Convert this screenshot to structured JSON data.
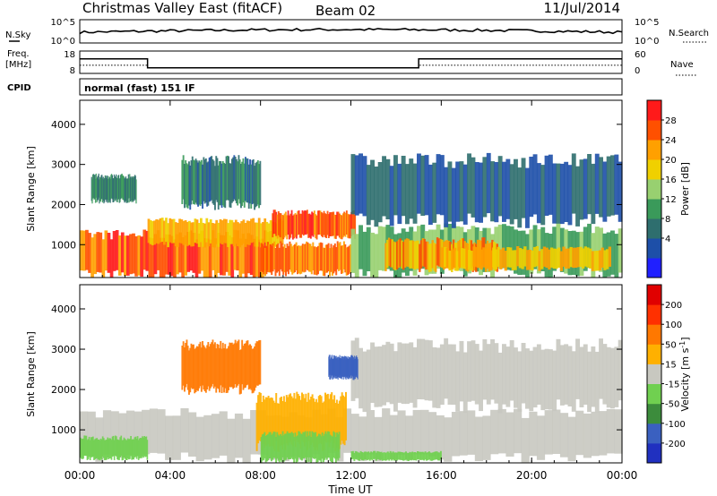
{
  "header": {
    "title": "Christmas Valley East (fitACF)",
    "beam": "Beam 02",
    "date": "11/Jul/2014"
  },
  "mode_label": "normal (fast) 151 IF",
  "side_labels": {
    "nsky": "N.Sky",
    "nsearch": "N.Search",
    "freq": "Freq.",
    "freq_unit": "[MHz]",
    "nave": "Nave",
    "cpid": "CPID"
  },
  "noise_panel": {
    "left_ticks": [
      "10^5",
      "10^0"
    ],
    "right_ticks": [
      "10^5",
      "10^0"
    ]
  },
  "freq_panel": {
    "left_ticks": [
      "18",
      "8"
    ],
    "right_ticks": [
      "60",
      "0"
    ],
    "frequency_mhz": [
      {
        "start_hour": 0,
        "end_hour": 3,
        "value": 14.5
      },
      {
        "start_hour": 3,
        "end_hour": 15,
        "value": 10.5
      },
      {
        "start_hour": 15,
        "end_hour": 24,
        "value": 14.5
      }
    ],
    "nave": [
      {
        "start_hour": 0,
        "end_hour": 3,
        "value": 22
      },
      {
        "start_hour": 3,
        "end_hour": 15,
        "value": 15
      },
      {
        "start_hour": 15,
        "end_hour": 24,
        "value": 22
      }
    ]
  },
  "chart_data": [
    {
      "type": "heatmap",
      "panel": "power",
      "ylabel": "Slant Range [km]",
      "xlim_hours": [
        0,
        24
      ],
      "ylim_km": [
        180,
        4600
      ],
      "yticks": [
        "1000",
        "2000",
        "3000",
        "4000"
      ],
      "colorbar": {
        "label": "Power [dB]",
        "ticks": [
          "28",
          "24",
          "20",
          "16",
          "12",
          "8",
          "4"
        ],
        "colors": [
          "#2020ff",
          "#1d4fa8",
          "#2e6e6e",
          "#3a9a5a",
          "#98d070",
          "#f0d000",
          "#ffa000",
          "#ff5000",
          "#ff1a1a"
        ]
      },
      "echo_regions": [
        {
          "t0": 0.0,
          "t1": 8.5,
          "r0": 250,
          "r1": 1250,
          "value_db": 28
        },
        {
          "t0": 3.0,
          "t1": 9.0,
          "r0": 1000,
          "r1": 1600,
          "value_db": 22
        },
        {
          "t0": 8.5,
          "t1": 12.2,
          "r0": 1200,
          "r1": 1800,
          "value_db": 28
        },
        {
          "t0": 8.0,
          "t1": 12.0,
          "r0": 300,
          "r1": 1000,
          "value_db": 26
        },
        {
          "t0": 12.0,
          "t1": 24.0,
          "r0": 300,
          "r1": 1400,
          "value_db": 14
        },
        {
          "t0": 13.5,
          "t1": 18.5,
          "r0": 400,
          "r1": 1100,
          "value_db": 24
        },
        {
          "t0": 16.0,
          "t1": 23.5,
          "r0": 400,
          "r1": 900,
          "value_db": 22
        },
        {
          "t0": 4.5,
          "t1": 8.0,
          "r0": 2000,
          "r1": 3100,
          "value_db": 8
        },
        {
          "t0": 12.0,
          "t1": 24.0,
          "r0": 1600,
          "r1": 3100,
          "value_db": 6
        },
        {
          "t0": 0.5,
          "t1": 2.5,
          "r0": 2100,
          "r1": 2700,
          "value_db": 10
        }
      ]
    },
    {
      "type": "heatmap",
      "panel": "velocity",
      "ylabel": "Slant Range [km]",
      "xlabel": "Time UT",
      "xlim_hours": [
        0,
        24
      ],
      "ylim_km": [
        180,
        4600
      ],
      "yticks": [
        "1000",
        "2000",
        "3000",
        "4000"
      ],
      "xticks": [
        "00:00",
        "04:00",
        "08:00",
        "12:00",
        "16:00",
        "20:00",
        "00:00"
      ],
      "colorbar": {
        "label": "Velocity [m s^-1]",
        "ticks": [
          "200",
          "100",
          "50",
          "15",
          "-15",
          "-50",
          "-100",
          "-200"
        ],
        "colors": [
          "#2030c0",
          "#3a60c0",
          "#3c8c3c",
          "#70d050",
          "#c8c8c0",
          "#ffb000",
          "#ff7800",
          "#ff3000",
          "#e00000"
        ]
      },
      "echo_regions": [
        {
          "t0": 0.0,
          "t1": 24.0,
          "r0": 300,
          "r1": 1400,
          "value_ms": 0
        },
        {
          "t0": 7.8,
          "t1": 11.8,
          "r0": 600,
          "r1": 1800,
          "value_ms": 30
        },
        {
          "t0": 8.0,
          "t1": 11.5,
          "r0": 250,
          "r1": 900,
          "value_ms": -40
        },
        {
          "t0": 0.0,
          "t1": 3.0,
          "r0": 300,
          "r1": 800,
          "value_ms": -30
        },
        {
          "t0": 12.0,
          "t1": 16.0,
          "r0": 250,
          "r1": 450,
          "value_ms": -40
        },
        {
          "t0": 4.5,
          "t1": 8.0,
          "r0": 2000,
          "r1": 3100,
          "value_ms": 60
        },
        {
          "t0": 12.0,
          "t1": 24.0,
          "r0": 1600,
          "r1": 3100,
          "value_ms": 0
        },
        {
          "t0": 11.0,
          "t1": 12.3,
          "r0": 2300,
          "r1": 2800,
          "value_ms": -150
        }
      ]
    }
  ]
}
